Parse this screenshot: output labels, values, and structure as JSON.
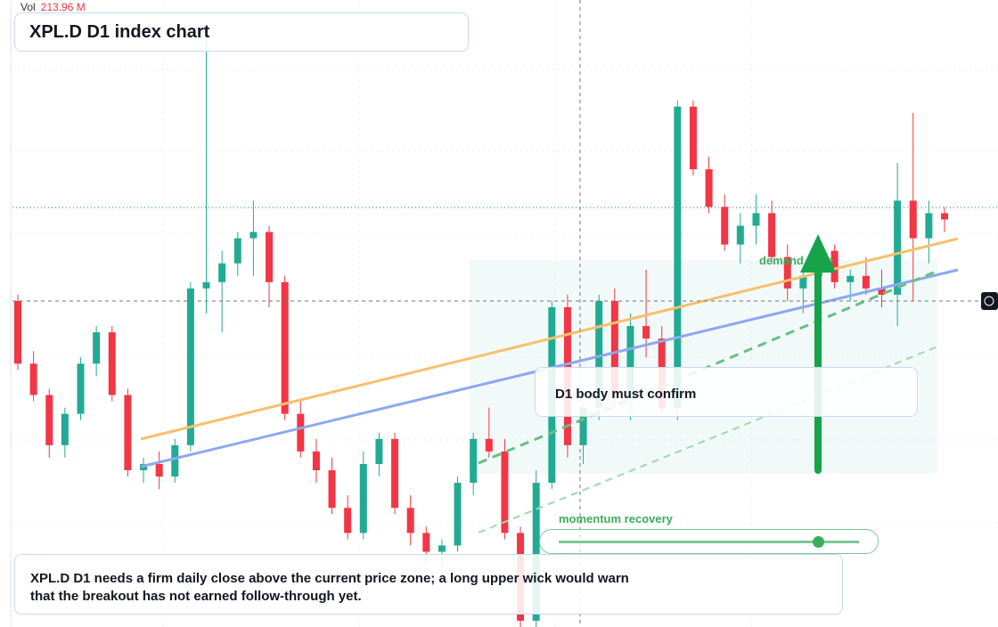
{
  "header": {
    "vol_label": "Vol",
    "vol_value": "213.96 M",
    "title": "XPL.D D1 index chart"
  },
  "annotations": {
    "zone": "demand zone",
    "confirm": "D1 body must confirm",
    "momentum": "momentum recovery",
    "note": "XPL.D D1 needs a firm daily close above the current price zone; a long upper wick would warn that the breakout has not earned follow-through yet."
  },
  "chart_data": {
    "type": "candlestick",
    "ylim": [
      0,
      100
    ],
    "up_color": "#22ab94",
    "down_color": "#f23645",
    "candles": [
      {
        "open": 52,
        "high": 53,
        "low": 41,
        "close": 42
      },
      {
        "open": 42,
        "high": 44,
        "low": 36,
        "close": 37
      },
      {
        "open": 37,
        "high": 38,
        "low": 27,
        "close": 29
      },
      {
        "open": 29,
        "high": 35,
        "low": 27,
        "close": 34
      },
      {
        "open": 34,
        "high": 43,
        "low": 33,
        "close": 42
      },
      {
        "open": 42,
        "high": 48,
        "low": 40,
        "close": 47
      },
      {
        "open": 47,
        "high": 48,
        "low": 36,
        "close": 37
      },
      {
        "open": 37,
        "high": 38,
        "low": 24,
        "close": 25
      },
      {
        "open": 25,
        "high": 27,
        "low": 23,
        "close": 26
      },
      {
        "open": 26,
        "high": 28,
        "low": 22,
        "close": 24
      },
      {
        "open": 24,
        "high": 30,
        "low": 23,
        "close": 29
      },
      {
        "open": 29,
        "high": 55,
        "low": 28,
        "close": 54
      },
      {
        "open": 54,
        "high": 94,
        "low": 50,
        "close": 55
      },
      {
        "open": 55,
        "high": 60,
        "low": 47,
        "close": 58
      },
      {
        "open": 58,
        "high": 63,
        "low": 56,
        "close": 62
      },
      {
        "open": 62,
        "high": 68,
        "low": 56,
        "close": 63
      },
      {
        "open": 63,
        "high": 64,
        "low": 51,
        "close": 55
      },
      {
        "open": 55,
        "high": 56,
        "low": 33,
        "close": 34
      },
      {
        "open": 34,
        "high": 36,
        "low": 27,
        "close": 28
      },
      {
        "open": 28,
        "high": 30,
        "low": 23,
        "close": 25
      },
      {
        "open": 25,
        "high": 27,
        "low": 18,
        "close": 19
      },
      {
        "open": 19,
        "high": 21,
        "low": 14,
        "close": 15
      },
      {
        "open": 15,
        "high": 28,
        "low": 14,
        "close": 26
      },
      {
        "open": 26,
        "high": 31,
        "low": 24,
        "close": 30
      },
      {
        "open": 30,
        "high": 31,
        "low": 18,
        "close": 19
      },
      {
        "open": 19,
        "high": 21,
        "low": 13,
        "close": 15
      },
      {
        "open": 15,
        "high": 16,
        "low": 10,
        "close": 12
      },
      {
        "open": 12,
        "high": 14,
        "low": 8,
        "close": 13
      },
      {
        "open": 13,
        "high": 24,
        "low": 12,
        "close": 23
      },
      {
        "open": 23,
        "high": 31,
        "low": 21,
        "close": 30
      },
      {
        "open": 30,
        "high": 35,
        "low": 27,
        "close": 28
      },
      {
        "open": 28,
        "high": 30,
        "low": 14,
        "close": 15
      },
      {
        "open": 15,
        "high": 16,
        "low": 0,
        "close": 1
      },
      {
        "open": 1,
        "high": 25,
        "low": 0,
        "close": 23
      },
      {
        "open": 23,
        "high": 52,
        "low": 22,
        "close": 51
      },
      {
        "open": 51,
        "high": 53,
        "low": 27,
        "close": 29
      },
      {
        "open": 29,
        "high": 36,
        "low": 26,
        "close": 35
      },
      {
        "open": 35,
        "high": 53,
        "low": 33,
        "close": 52
      },
      {
        "open": 52,
        "high": 54,
        "low": 35,
        "close": 37
      },
      {
        "open": 37,
        "high": 50,
        "low": 33,
        "close": 48
      },
      {
        "open": 48,
        "high": 57,
        "low": 43,
        "close": 46
      },
      {
        "open": 46,
        "high": 48,
        "low": 34,
        "close": 35
      },
      {
        "open": 35,
        "high": 84,
        "low": 33,
        "close": 83
      },
      {
        "open": 83,
        "high": 84,
        "low": 72,
        "close": 73
      },
      {
        "open": 73,
        "high": 75,
        "low": 66,
        "close": 67
      },
      {
        "open": 67,
        "high": 69,
        "low": 60,
        "close": 61
      },
      {
        "open": 61,
        "high": 66,
        "low": 58,
        "close": 64
      },
      {
        "open": 64,
        "high": 69,
        "low": 61,
        "close": 66
      },
      {
        "open": 66,
        "high": 68,
        "low": 58,
        "close": 59
      },
      {
        "open": 59,
        "high": 61,
        "low": 52,
        "close": 54
      },
      {
        "open": 54,
        "high": 57,
        "low": 50,
        "close": 56
      },
      {
        "open": 56,
        "high": 62,
        "low": 53,
        "close": 60
      },
      {
        "open": 60,
        "high": 61,
        "low": 54,
        "close": 55
      },
      {
        "open": 55,
        "high": 57,
        "low": 52,
        "close": 56
      },
      {
        "open": 56,
        "high": 59,
        "low": 53,
        "close": 54
      },
      {
        "open": 54,
        "high": 57,
        "low": 51,
        "close": 53
      },
      {
        "open": 53,
        "high": 74,
        "low": 48,
        "close": 68
      },
      {
        "open": 68,
        "high": 82,
        "low": 52,
        "close": 62
      },
      {
        "open": 62,
        "high": 68,
        "low": 58,
        "close": 66
      },
      {
        "open": 66,
        "high": 67,
        "low": 63,
        "close": 65
      }
    ]
  }
}
